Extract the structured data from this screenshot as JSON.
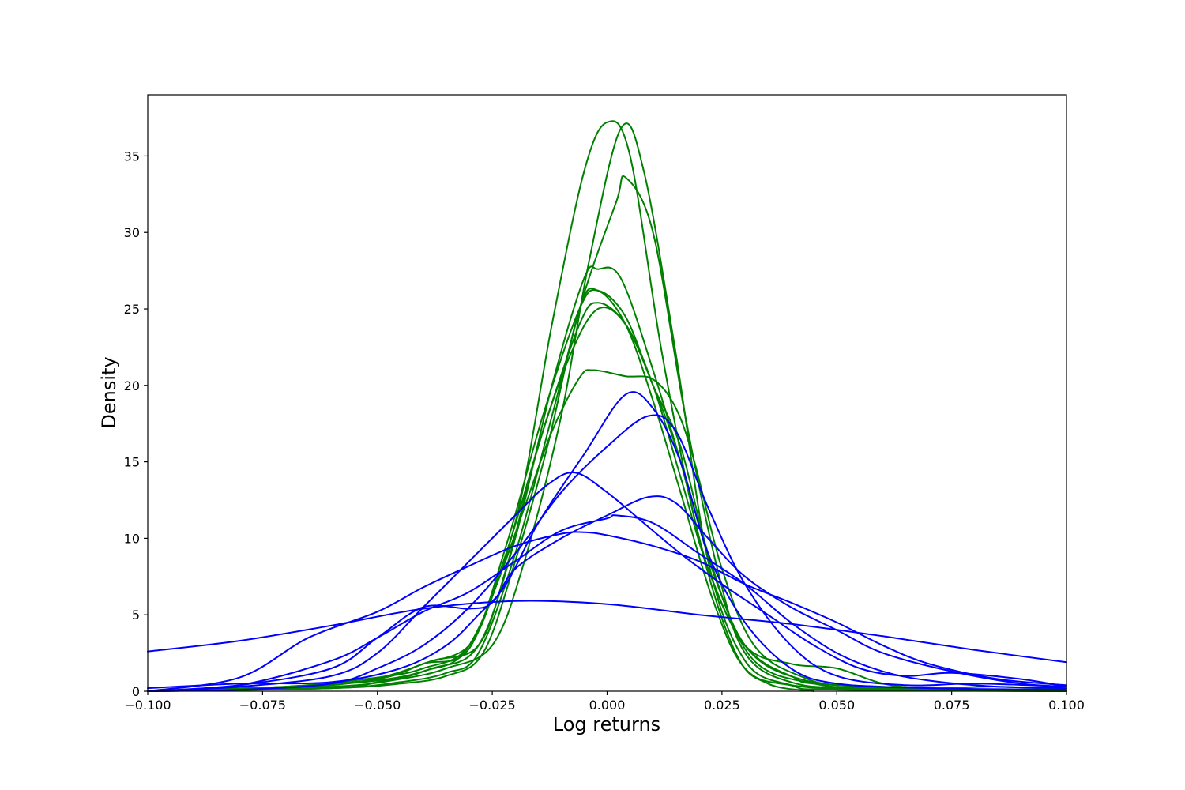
{
  "chart_data": {
    "type": "line",
    "title": "",
    "xlabel": "Log returns",
    "ylabel": "Density",
    "xlim": [
      -0.1,
      0.1
    ],
    "ylim": [
      0,
      39
    ],
    "x_ticks": [
      -0.1,
      -0.075,
      -0.05,
      -0.025,
      0.0,
      0.025,
      0.05,
      0.075,
      0.1
    ],
    "x_tick_labels": [
      "−0.100",
      "−0.075",
      "−0.050",
      "−0.025",
      "0.000",
      "0.025",
      "0.050",
      "0.075",
      "0.100"
    ],
    "y_ticks": [
      0,
      5,
      10,
      15,
      20,
      25,
      30,
      35
    ],
    "y_tick_labels": [
      "0",
      "5",
      "10",
      "15",
      "20",
      "25",
      "30",
      "35"
    ],
    "grid": false,
    "legend": "none",
    "colors": {
      "green": "#008000",
      "blue": "#0000ff"
    },
    "series": [
      {
        "color": "green",
        "points": [
          [
            -0.1,
            0.0
          ],
          [
            -0.06,
            0.2
          ],
          [
            -0.05,
            0.6
          ],
          [
            -0.04,
            1.3
          ],
          [
            -0.03,
            3.0
          ],
          [
            -0.02,
            11.0
          ],
          [
            -0.012,
            24.0
          ],
          [
            -0.005,
            34.0
          ],
          [
            0.0,
            37.2
          ],
          [
            0.005,
            35.0
          ],
          [
            0.012,
            22.0
          ],
          [
            0.02,
            10.0
          ],
          [
            0.028,
            2.5
          ],
          [
            0.035,
            0.5
          ],
          [
            0.045,
            0.0
          ]
        ]
      },
      {
        "color": "green",
        "points": [
          [
            -0.1,
            0.0
          ],
          [
            -0.06,
            0.3
          ],
          [
            -0.045,
            0.8
          ],
          [
            -0.035,
            1.5
          ],
          [
            -0.025,
            3.0
          ],
          [
            -0.018,
            8.5
          ],
          [
            -0.01,
            18.0
          ],
          [
            -0.004,
            28.0
          ],
          [
            0.003,
            36.8
          ],
          [
            0.008,
            34.0
          ],
          [
            0.015,
            22.0
          ],
          [
            0.022,
            8.5
          ],
          [
            0.03,
            2.0
          ],
          [
            0.04,
            0.4
          ],
          [
            0.05,
            0.1
          ],
          [
            0.1,
            0.0
          ]
        ]
      },
      {
        "color": "green",
        "points": [
          [
            -0.1,
            0.0
          ],
          [
            -0.06,
            0.2
          ],
          [
            -0.045,
            0.6
          ],
          [
            -0.035,
            1.2
          ],
          [
            -0.028,
            2.5
          ],
          [
            -0.02,
            9.0
          ],
          [
            -0.012,
            18.0
          ],
          [
            -0.005,
            26.0
          ],
          [
            0.002,
            32.0
          ],
          [
            0.004,
            33.6
          ],
          [
            0.01,
            30.0
          ],
          [
            0.017,
            18.0
          ],
          [
            0.024,
            8.0
          ],
          [
            0.03,
            2.5
          ],
          [
            0.04,
            0.6
          ],
          [
            0.055,
            0.2
          ],
          [
            0.1,
            0.0
          ]
        ]
      },
      {
        "color": "green",
        "points": [
          [
            -0.1,
            0.0
          ],
          [
            -0.07,
            0.3
          ],
          [
            -0.05,
            0.7
          ],
          [
            -0.038,
            1.5
          ],
          [
            -0.028,
            3.0
          ],
          [
            -0.02,
            10.0
          ],
          [
            -0.012,
            20.0
          ],
          [
            -0.005,
            27.0
          ],
          [
            -0.002,
            27.6
          ],
          [
            0.003,
            27.0
          ],
          [
            0.01,
            21.0
          ],
          [
            0.017,
            14.0
          ],
          [
            0.024,
            7.0
          ],
          [
            0.032,
            2.0
          ],
          [
            0.045,
            0.5
          ],
          [
            0.06,
            0.2
          ],
          [
            0.1,
            0.0
          ]
        ]
      },
      {
        "color": "green",
        "points": [
          [
            -0.1,
            0.0
          ],
          [
            -0.07,
            0.2
          ],
          [
            -0.05,
            0.8
          ],
          [
            -0.04,
            1.8
          ],
          [
            -0.03,
            2.8
          ],
          [
            -0.022,
            9.5
          ],
          [
            -0.014,
            18.0
          ],
          [
            -0.006,
            25.0
          ],
          [
            -0.002,
            26.2
          ],
          [
            0.004,
            24.5
          ],
          [
            0.01,
            20.0
          ],
          [
            0.016,
            16.0
          ],
          [
            0.022,
            9.0
          ],
          [
            0.03,
            3.0
          ],
          [
            0.042,
            0.8
          ],
          [
            0.06,
            0.3
          ],
          [
            0.1,
            0.0
          ]
        ]
      },
      {
        "color": "green",
        "points": [
          [
            -0.1,
            0.0
          ],
          [
            -0.07,
            0.3
          ],
          [
            -0.05,
            0.9
          ],
          [
            -0.04,
            1.5
          ],
          [
            -0.03,
            3.0
          ],
          [
            -0.022,
            9.0
          ],
          [
            -0.014,
            17.0
          ],
          [
            -0.006,
            24.0
          ],
          [
            -0.002,
            25.4
          ],
          [
            0.004,
            24.0
          ],
          [
            0.01,
            20.0
          ],
          [
            0.016,
            15.0
          ],
          [
            0.022,
            8.0
          ],
          [
            0.03,
            3.0
          ],
          [
            0.04,
            1.0
          ],
          [
            0.05,
            0.4
          ],
          [
            0.1,
            0.0
          ]
        ]
      },
      {
        "color": "green",
        "points": [
          [
            -0.1,
            0.0
          ],
          [
            -0.07,
            0.3
          ],
          [
            -0.05,
            0.8
          ],
          [
            -0.04,
            1.8
          ],
          [
            -0.03,
            3.0
          ],
          [
            -0.024,
            7.0
          ],
          [
            -0.018,
            12.0
          ],
          [
            -0.012,
            17.0
          ],
          [
            -0.006,
            20.5
          ],
          [
            -0.003,
            21.0
          ],
          [
            0.004,
            20.6
          ],
          [
            0.01,
            20.4
          ],
          [
            0.015,
            18.5
          ],
          [
            0.019,
            15.0
          ],
          [
            0.025,
            8.0
          ],
          [
            0.032,
            3.0
          ],
          [
            0.042,
            1.0
          ],
          [
            0.055,
            0.3
          ],
          [
            0.1,
            0.0
          ]
        ]
      },
      {
        "color": "green",
        "points": [
          [
            -0.1,
            0.0
          ],
          [
            -0.08,
            0.2
          ],
          [
            -0.06,
            0.4
          ],
          [
            -0.048,
            1.0
          ],
          [
            -0.038,
            2.0
          ],
          [
            -0.028,
            3.0
          ],
          [
            -0.022,
            8.0
          ],
          [
            -0.015,
            16.0
          ],
          [
            -0.008,
            22.0
          ],
          [
            -0.002,
            25.0
          ],
          [
            0.004,
            24.0
          ],
          [
            0.01,
            20.0
          ],
          [
            0.016,
            14.0
          ],
          [
            0.022,
            8.0
          ],
          [
            0.03,
            3.0
          ],
          [
            0.04,
            1.8
          ],
          [
            0.05,
            1.5
          ],
          [
            0.06,
            0.5
          ],
          [
            0.07,
            0.2
          ],
          [
            0.085,
            0.3
          ],
          [
            0.1,
            0.1
          ]
        ]
      },
      {
        "color": "green",
        "points": [
          [
            -0.1,
            0.0
          ],
          [
            -0.06,
            0.2
          ],
          [
            -0.045,
            0.5
          ],
          [
            -0.035,
            1.0
          ],
          [
            -0.027,
            2.5
          ],
          [
            -0.02,
            8.5
          ],
          [
            -0.013,
            16.0
          ],
          [
            -0.006,
            25.0
          ],
          [
            -0.002,
            26.2
          ],
          [
            0.004,
            24.0
          ],
          [
            0.01,
            19.0
          ],
          [
            0.016,
            13.0
          ],
          [
            0.023,
            6.0
          ],
          [
            0.03,
            1.5
          ],
          [
            0.04,
            0.4
          ],
          [
            0.06,
            0.1
          ],
          [
            0.1,
            0.0
          ]
        ]
      },
      {
        "color": "blue",
        "points": [
          [
            -0.1,
            2.6
          ],
          [
            -0.08,
            3.3
          ],
          [
            -0.06,
            4.3
          ],
          [
            -0.04,
            5.4
          ],
          [
            -0.02,
            5.9
          ],
          [
            0.0,
            5.7
          ],
          [
            0.02,
            5.0
          ],
          [
            0.04,
            4.4
          ],
          [
            0.06,
            3.6
          ],
          [
            0.08,
            2.7
          ],
          [
            0.1,
            1.9
          ]
        ]
      },
      {
        "color": "blue",
        "points": [
          [
            -0.1,
            0.2
          ],
          [
            -0.08,
            0.5
          ],
          [
            -0.06,
            0.6
          ],
          [
            -0.045,
            1.5
          ],
          [
            -0.035,
            3.0
          ],
          [
            -0.028,
            5.0
          ],
          [
            -0.022,
            7.0
          ],
          [
            -0.015,
            11.0
          ],
          [
            -0.005,
            15.5
          ],
          [
            0.004,
            19.4
          ],
          [
            0.01,
            18.5
          ],
          [
            0.016,
            15.0
          ],
          [
            0.022,
            9.0
          ],
          [
            0.03,
            4.5
          ],
          [
            0.04,
            1.5
          ],
          [
            0.05,
            0.5
          ],
          [
            0.07,
            0.2
          ],
          [
            0.1,
            0.1
          ]
        ]
      },
      {
        "color": "blue",
        "points": [
          [
            -0.1,
            0.0
          ],
          [
            -0.08,
            0.1
          ],
          [
            -0.06,
            0.5
          ],
          [
            -0.05,
            1.5
          ],
          [
            -0.04,
            3.0
          ],
          [
            -0.03,
            5.5
          ],
          [
            -0.02,
            9.0
          ],
          [
            -0.01,
            13.0
          ],
          [
            0.0,
            16.0
          ],
          [
            0.009,
            18.0
          ],
          [
            0.015,
            17.0
          ],
          [
            0.022,
            12.0
          ],
          [
            0.03,
            7.0
          ],
          [
            0.04,
            3.0
          ],
          [
            0.05,
            1.0
          ],
          [
            0.065,
            0.4
          ],
          [
            0.08,
            0.5
          ],
          [
            0.1,
            0.3
          ]
        ]
      },
      {
        "color": "blue",
        "points": [
          [
            -0.1,
            0.0
          ],
          [
            -0.08,
            0.3
          ],
          [
            -0.06,
            1.0
          ],
          [
            -0.05,
            2.5
          ],
          [
            -0.04,
            5.5
          ],
          [
            -0.03,
            8.5
          ],
          [
            -0.02,
            11.5
          ],
          [
            -0.013,
            13.5
          ],
          [
            -0.007,
            14.3
          ],
          [
            0.0,
            13.0
          ],
          [
            0.008,
            11.0
          ],
          [
            0.016,
            9.0
          ],
          [
            0.025,
            7.0
          ],
          [
            0.035,
            5.0
          ],
          [
            0.045,
            3.0
          ],
          [
            0.055,
            1.5
          ],
          [
            0.065,
            1.0
          ],
          [
            0.075,
            1.2
          ],
          [
            0.09,
            0.8
          ],
          [
            0.1,
            0.3
          ]
        ]
      },
      {
        "color": "blue",
        "points": [
          [
            -0.1,
            0.0
          ],
          [
            -0.08,
            0.4
          ],
          [
            -0.06,
            2.0
          ],
          [
            -0.05,
            3.5
          ],
          [
            -0.04,
            5.2
          ],
          [
            -0.03,
            6.5
          ],
          [
            -0.02,
            8.5
          ],
          [
            -0.01,
            10.5
          ],
          [
            0.0,
            11.3
          ],
          [
            0.002,
            11.5
          ],
          [
            0.01,
            11.0
          ],
          [
            0.02,
            9.0
          ],
          [
            0.03,
            7.0
          ],
          [
            0.04,
            4.5
          ],
          [
            0.05,
            2.5
          ],
          [
            0.06,
            1.3
          ],
          [
            0.07,
            0.7
          ],
          [
            0.085,
            0.3
          ],
          [
            0.1,
            0.2
          ]
        ]
      },
      {
        "color": "blue",
        "points": [
          [
            -0.1,
            0.0
          ],
          [
            -0.08,
            0.4
          ],
          [
            -0.06,
            1.5
          ],
          [
            -0.05,
            3.5
          ],
          [
            -0.04,
            5.5
          ],
          [
            -0.03,
            5.4
          ],
          [
            -0.025,
            5.8
          ],
          [
            -0.02,
            8.0
          ],
          [
            -0.01,
            10.0
          ],
          [
            0.0,
            11.5
          ],
          [
            0.009,
            12.7
          ],
          [
            0.015,
            12.3
          ],
          [
            0.022,
            10.0
          ],
          [
            0.03,
            7.5
          ],
          [
            0.04,
            5.5
          ],
          [
            0.05,
            4.0
          ],
          [
            0.06,
            2.5
          ],
          [
            0.075,
            1.3
          ],
          [
            0.09,
            0.5
          ],
          [
            0.1,
            0.3
          ]
        ]
      },
      {
        "color": "blue",
        "points": [
          [
            -0.1,
            0.0
          ],
          [
            -0.08,
            0.9
          ],
          [
            -0.065,
            3.5
          ],
          [
            -0.05,
            5.2
          ],
          [
            -0.04,
            6.8
          ],
          [
            -0.03,
            8.2
          ],
          [
            -0.02,
            9.5
          ],
          [
            -0.01,
            10.3
          ],
          [
            -0.005,
            10.4
          ],
          [
            0.0,
            10.2
          ],
          [
            0.01,
            9.5
          ],
          [
            0.02,
            8.5
          ],
          [
            0.03,
            7.0
          ],
          [
            0.04,
            5.8
          ],
          [
            0.05,
            4.5
          ],
          [
            0.06,
            3.0
          ],
          [
            0.07,
            1.8
          ],
          [
            0.085,
            0.8
          ],
          [
            0.1,
            0.4
          ]
        ]
      }
    ]
  }
}
